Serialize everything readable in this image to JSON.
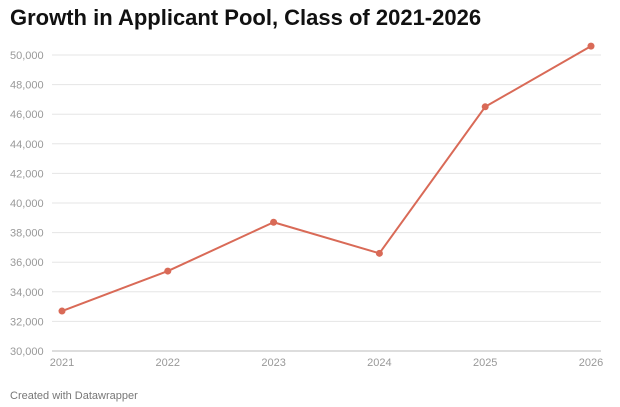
{
  "chart_data": {
    "type": "line",
    "title": "Growth in Applicant Pool, Class of 2021-2026",
    "xlabel": "",
    "ylabel": "",
    "categories": [
      "2021",
      "2022",
      "2023",
      "2024",
      "2025",
      "2026"
    ],
    "series": [
      {
        "values": [
          32700,
          35400,
          38700,
          36600,
          46500,
          50600
        ]
      }
    ],
    "ylim": [
      30000,
      51000
    ],
    "yticks": [
      30000,
      32000,
      34000,
      36000,
      38000,
      40000,
      42000,
      44000,
      46000,
      48000,
      50000
    ],
    "ytick_labels": [
      "30,000",
      "32,000",
      "34,000",
      "36,000",
      "38,000",
      "40,000",
      "42,000",
      "44,000",
      "46,000",
      "48,000",
      "50,000"
    ],
    "grid": true,
    "line_color": "#d96a57",
    "grid_color": "#e5e5e5"
  },
  "footer": {
    "credit": "Created with Datawrapper"
  }
}
